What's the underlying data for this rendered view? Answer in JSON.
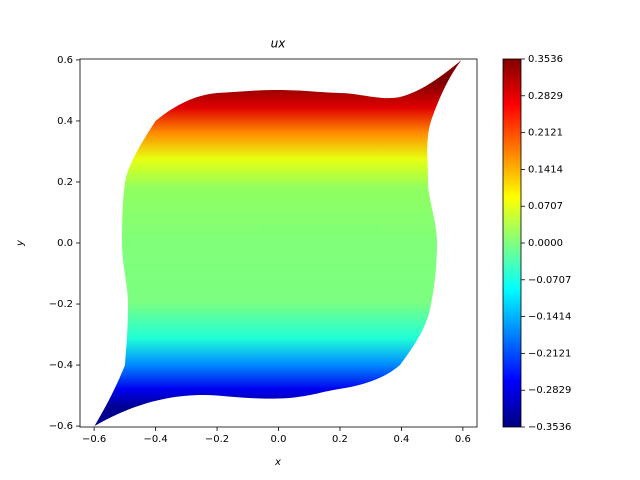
{
  "chart_data": {
    "type": "contour",
    "title": "ux",
    "x_label": "x",
    "y_label": "y",
    "xlim": [
      -0.646,
      0.646
    ],
    "ylim": [
      -0.603,
      0.603
    ],
    "xticks": [
      {
        "value": -0.6,
        "label": "−0.6"
      },
      {
        "value": -0.4,
        "label": "−0.4"
      },
      {
        "value": -0.2,
        "label": "−0.2"
      },
      {
        "value": 0,
        "label": "0.0"
      },
      0.2,
      0.4,
      0.6
    ],
    "yticks": [
      {
        "value": -0.6,
        "label": "−0.6"
      },
      {
        "value": -0.4,
        "label": "−0.4"
      },
      {
        "value": -0.2,
        "label": "−0.2"
      },
      {
        "value": 0,
        "label": "0.0"
      },
      0.2,
      0.4,
      0.6
    ],
    "colormap": "jet",
    "zlim": [
      -0.3536,
      0.3536
    ],
    "zticks": [
      {
        "value": -0.3536,
        "label": "−0.3536"
      },
      {
        "value": -0.2829,
        "label": "−0.2829"
      },
      {
        "value": -0.2121,
        "label": "−0.2121"
      },
      {
        "value": -0.1414,
        "label": "−0.1414"
      },
      {
        "value": -0.0707,
        "label": "−0.0707"
      },
      {
        "value": 0,
        "label": "0.0000"
      },
      0.0707,
      0.1414,
      0.2121,
      0.2829,
      0.3536
    ]
  }
}
